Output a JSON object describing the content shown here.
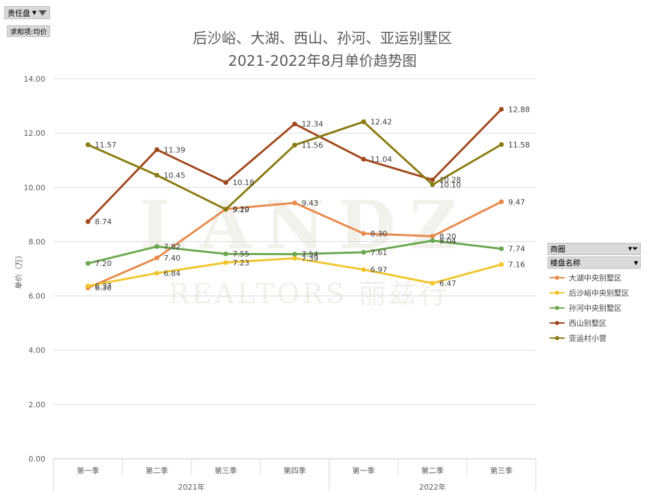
{
  "filters": {
    "top_field": "责任盘",
    "value_field": "求和项:均价",
    "legend_field_1": "商圈",
    "legend_field_2": "楼盘名称"
  },
  "watermark": {
    "line1": "LANDZ",
    "line2": "REALTORS 丽兹行"
  },
  "chart_data": {
    "type": "line",
    "title": "后沙峪、大湖、西山、孙河、亚运别墅区",
    "subtitle": "2021-2022年8月单价趋势图",
    "ylabel": "单价（万）",
    "ylim": [
      0,
      14
    ],
    "yticks": [
      "0.00",
      "2.00",
      "4.00",
      "6.00",
      "8.00",
      "10.00",
      "12.00",
      "14.00"
    ],
    "categories": [
      "第一季",
      "第二季",
      "第三季",
      "第四季",
      "第一季",
      "第二季",
      "第三季"
    ],
    "groups": [
      {
        "label": "2021年",
        "span": 4
      },
      {
        "label": "2022年",
        "span": 3
      }
    ],
    "grid": true,
    "legend_position": "right",
    "series": [
      {
        "name": "大湖中央别墅区",
        "color": "#e8894b",
        "values": [
          6.3,
          7.4,
          9.2,
          9.43,
          8.3,
          8.2,
          9.47
        ],
        "labels": [
          "6.30",
          "7.40",
          "9.20",
          "9.43",
          "8.30",
          "8.20",
          "9.47"
        ]
      },
      {
        "name": "后沙峪中央别墅区",
        "color": "#f2c52b",
        "values": [
          6.37,
          6.84,
          7.23,
          7.39,
          6.97,
          6.47,
          7.16
        ],
        "labels": [
          "6.37",
          "6.84",
          "7.23",
          "7.39",
          "6.97",
          "6.47",
          "7.16"
        ]
      },
      {
        "name": "孙河中央别墅区",
        "color": "#6aa84f",
        "values": [
          7.2,
          7.82,
          7.55,
          7.54,
          7.61,
          8.04,
          7.74
        ],
        "labels": [
          "7.20",
          "7.82",
          "7.55",
          "7.54",
          "7.61",
          "8.04",
          "7.74"
        ]
      },
      {
        "name": "西山别墅区",
        "color": "#a0481c",
        "values": [
          8.74,
          11.39,
          10.18,
          12.34,
          11.04,
          10.28,
          12.88
        ],
        "labels": [
          "8.74",
          "11.39",
          "10.18",
          "12.34",
          "11.04",
          "10.28",
          "12.88"
        ]
      },
      {
        "name": "亚运村小营",
        "color": "#8b7a10",
        "values": [
          11.57,
          10.45,
          9.19,
          11.56,
          12.42,
          10.1,
          11.58
        ],
        "labels": [
          "11.57",
          "10.45",
          "9.19",
          "11.56",
          "12.42",
          "10.10",
          "11.58"
        ]
      }
    ]
  }
}
